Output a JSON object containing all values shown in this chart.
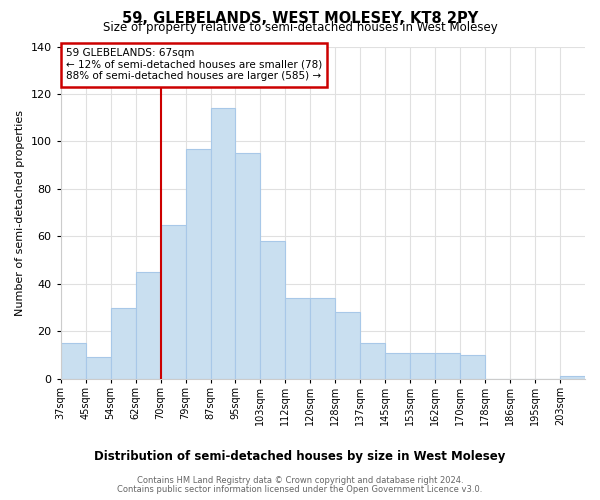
{
  "title": "59, GLEBELANDS, WEST MOLESEY, KT8 2PY",
  "subtitle": "Size of property relative to semi-detached houses in West Molesey",
  "xlabel": "Distribution of semi-detached houses by size in West Molesey",
  "ylabel": "Number of semi-detached properties",
  "bin_labels": [
    "37sqm",
    "45sqm",
    "54sqm",
    "62sqm",
    "70sqm",
    "79sqm",
    "87sqm",
    "95sqm",
    "103sqm",
    "112sqm",
    "120sqm",
    "128sqm",
    "137sqm",
    "145sqm",
    "153sqm",
    "162sqm",
    "170sqm",
    "178sqm",
    "186sqm",
    "195sqm",
    "203sqm"
  ],
  "bar_values": [
    15,
    9,
    30,
    45,
    65,
    97,
    114,
    95,
    58,
    34,
    34,
    28,
    15,
    11,
    11,
    11,
    10,
    0,
    0,
    0,
    1
  ],
  "bar_color": "#c9dff0",
  "bar_edge_color": "#a8c8e8",
  "property_line_bin_index": 4,
  "annotation_text_line1": "59 GLEBELANDS: 67sqm",
  "annotation_text_line2": "← 12% of semi-detached houses are smaller (78)",
  "annotation_text_line3": "88% of semi-detached houses are larger (585) →",
  "annotation_box_color": "#ffffff",
  "annotation_box_edge": "#cc0000",
  "property_line_color": "#cc0000",
  "ylim": [
    0,
    140
  ],
  "yticks": [
    0,
    20,
    40,
    60,
    80,
    100,
    120,
    140
  ],
  "footer_line1": "Contains HM Land Registry data © Crown copyright and database right 2024.",
  "footer_line2": "Contains public sector information licensed under the Open Government Licence v3.0.",
  "background_color": "#ffffff",
  "grid_color": "#e0e0e0"
}
